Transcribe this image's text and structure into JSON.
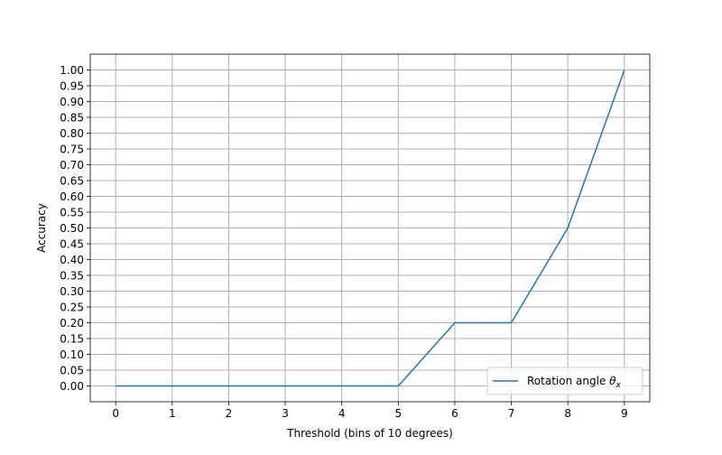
{
  "chart_data": {
    "type": "line",
    "title": "",
    "xlabel": "Threshold (bins of 10 degrees)",
    "ylabel": "Accuracy",
    "x": [
      0,
      1,
      2,
      3,
      4,
      5,
      6,
      7,
      8,
      9
    ],
    "xticks": [
      "0",
      "1",
      "2",
      "3",
      "4",
      "5",
      "6",
      "7",
      "8",
      "9"
    ],
    "yticks": [
      "0.00",
      "0.05",
      "0.10",
      "0.15",
      "0.20",
      "0.25",
      "0.30",
      "0.35",
      "0.40",
      "0.45",
      "0.50",
      "0.55",
      "0.60",
      "0.65",
      "0.70",
      "0.75",
      "0.80",
      "0.85",
      "0.90",
      "0.95",
      "1.00"
    ],
    "xlim": [
      -0.45,
      9.45
    ],
    "ylim": [
      -0.05,
      1.05
    ],
    "grid": true,
    "legend_position": "lower-right",
    "series": [
      {
        "name_prefix": "Rotation angle ",
        "name_symbol": "θ",
        "name_subscript": "x",
        "color": "#1f77b4",
        "values": [
          0,
          0,
          0,
          0,
          0,
          0,
          0.2,
          0.2,
          0.5,
          1.0
        ]
      }
    ]
  }
}
